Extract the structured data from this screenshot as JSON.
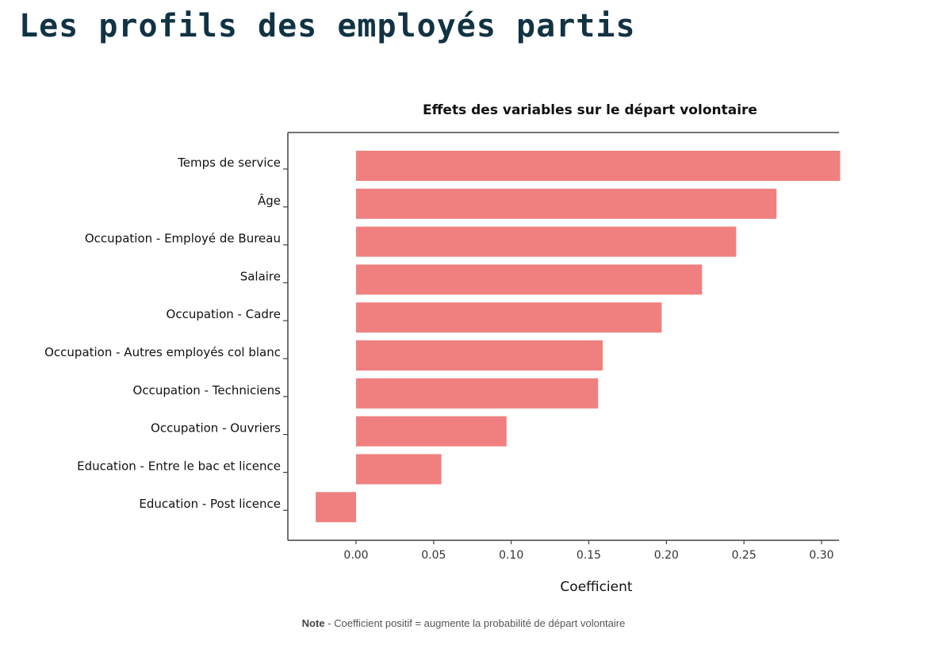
{
  "page": {
    "title": "Les profils des employés partis",
    "note_label": "Note",
    "note_text": " - Coefficient positif = augmente la probabilité de départ volontaire"
  },
  "colors": {
    "title": "#113344",
    "bar": "#f08080",
    "axis": "#444444"
  },
  "chart_data": {
    "type": "bar",
    "orientation": "horizontal",
    "title": "Effets des variables sur le départ volontaire",
    "xlabel": "Coefficient",
    "ylabel": "",
    "categories": [
      "Temps de service",
      "Âge",
      "Occupation -  Employé de Bureau",
      "Salaire",
      "Occupation - Cadre",
      "Occupation - Autres employés col blanc",
      "Occupation - Techniciens",
      "Occupation - Ouvriers",
      "Education - Entre le bac et licence",
      "Education - Post licence"
    ],
    "values": [
      0.312,
      0.271,
      0.245,
      0.223,
      0.197,
      0.159,
      0.156,
      0.097,
      0.055,
      -0.026
    ],
    "xlim": [
      -0.045,
      0.312
    ],
    "xticks": [
      0.0,
      0.05,
      0.1,
      0.15,
      0.2,
      0.25,
      0.3
    ],
    "xtick_labels": [
      "0.00",
      "0.05",
      "0.10",
      "0.15",
      "0.20",
      "0.25",
      "0.30"
    ],
    "grid": false,
    "legend": "none"
  }
}
